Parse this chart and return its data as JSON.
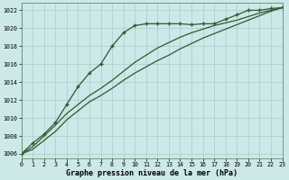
{
  "background_color": "#cce8e8",
  "plot_bg_color": "#cce8e8",
  "grid_color": "#aacccc",
  "line_color": "#2d5a2d",
  "marker_color": "#2d5a2d",
  "title": "Graphe pression niveau de la mer (hPa)",
  "xlim": [
    0,
    23
  ],
  "ylim": [
    1005.5,
    1022.8
  ],
  "xticks": [
    0,
    1,
    2,
    3,
    4,
    5,
    6,
    7,
    8,
    9,
    10,
    11,
    12,
    13,
    14,
    15,
    16,
    17,
    18,
    19,
    20,
    21,
    22,
    23
  ],
  "yticks": [
    1006,
    1008,
    1010,
    1012,
    1014,
    1016,
    1018,
    1020,
    1022
  ],
  "series1": [
    1006.0,
    1007.2,
    1008.2,
    1009.5,
    1011.5,
    1013.5,
    1015.0,
    1016.0,
    1018.0,
    1019.5,
    1020.3,
    1020.5,
    1020.5,
    1020.5,
    1020.5,
    1020.4,
    1020.5,
    1020.5,
    1021.0,
    1021.5,
    1022.0,
    1022.0,
    1022.2,
    1022.3
  ],
  "series2": [
    1006.0,
    1006.8,
    1008.0,
    1009.2,
    1010.5,
    1011.5,
    1012.5,
    1013.3,
    1014.2,
    1015.2,
    1016.2,
    1017.0,
    1017.8,
    1018.4,
    1019.0,
    1019.5,
    1019.9,
    1020.3,
    1020.6,
    1020.9,
    1021.3,
    1021.7,
    1022.0,
    1022.3
  ],
  "series3": [
    1006.0,
    1006.5,
    1007.5,
    1008.5,
    1009.8,
    1010.8,
    1011.8,
    1012.5,
    1013.3,
    1014.2,
    1015.0,
    1015.7,
    1016.4,
    1017.0,
    1017.7,
    1018.3,
    1018.9,
    1019.4,
    1019.9,
    1020.4,
    1020.9,
    1021.4,
    1021.9,
    1022.3
  ]
}
